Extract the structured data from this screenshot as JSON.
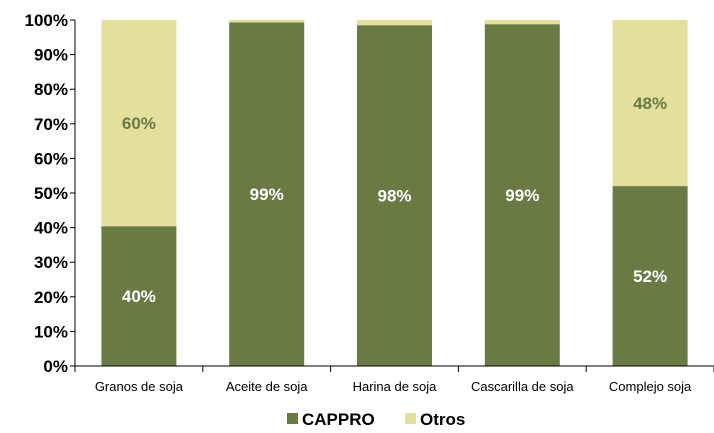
{
  "chart_data": {
    "type": "bar",
    "stacked": true,
    "percent": true,
    "title": "",
    "xlabel": "",
    "ylabel": "",
    "ylim": [
      0,
      100
    ],
    "yticks": [
      "0%",
      "10%",
      "20%",
      "30%",
      "40%",
      "50%",
      "60%",
      "70%",
      "80%",
      "90%",
      "100%"
    ],
    "categories": [
      "Granos de soja",
      "Aceite de soja",
      "Harina de soja",
      "Cascarilla de soja",
      "Complejo soja"
    ],
    "series": [
      {
        "name": "CAPPRO",
        "color": "#6a7a44",
        "label_color": "#ffffff",
        "values": [
          40.4,
          99.3,
          98.5,
          98.8,
          52
        ],
        "labels": [
          "40%",
          "99%",
          "98%",
          "99%",
          "52%"
        ]
      },
      {
        "name": "Otros",
        "color": "#e2e09c",
        "label_color": "#6a7a44",
        "values": [
          59.6,
          0.7,
          1.5,
          1.2,
          48
        ],
        "labels": [
          "60%",
          "",
          "",
          "",
          "48%"
        ]
      }
    ],
    "legend": {
      "position": "bottom",
      "items": [
        "CAPPRO",
        "Otros"
      ]
    },
    "grid": false
  }
}
